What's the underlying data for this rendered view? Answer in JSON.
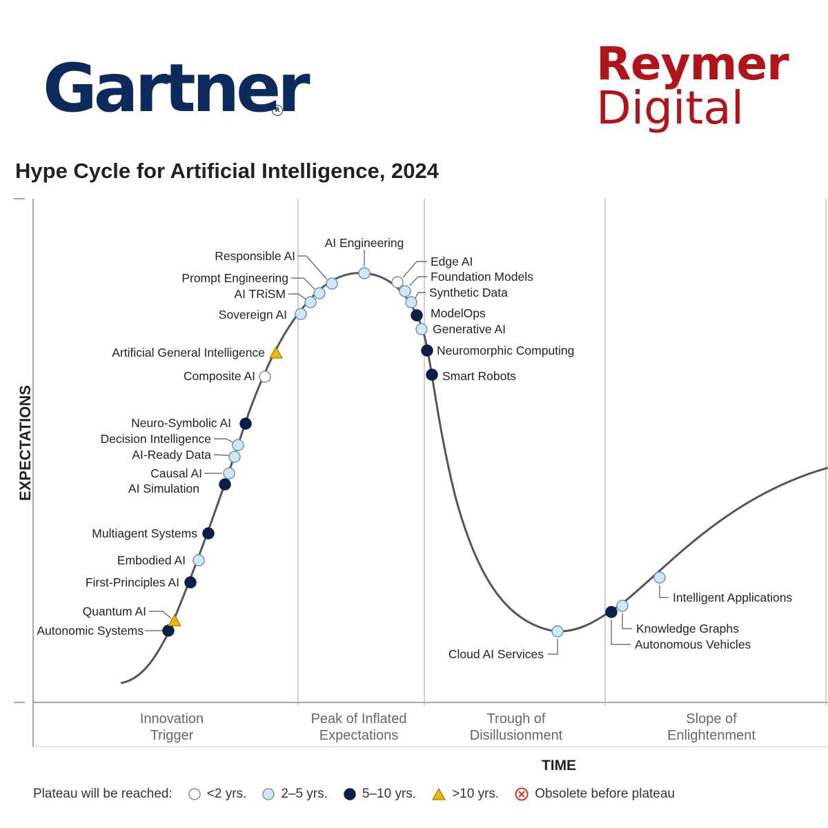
{
  "logos": {
    "gartner": "Gartner",
    "reymer_line1": "Reymer",
    "reymer_line2": "Digital",
    "colors": {
      "gartner": "#0c2a5b",
      "reymer": "#b2141a"
    }
  },
  "legend": {
    "prefix": "Plateau will be reached:",
    "items": [
      {
        "label": "<2 yrs.",
        "symbol": "white-circle"
      },
      {
        "label": "2–5 yrs.",
        "symbol": "light-blue-circle"
      },
      {
        "label": "5–10 yrs.",
        "symbol": "dark-blue-circle"
      },
      {
        "label": ">10 yrs.",
        "symbol": "yellow-triangle"
      },
      {
        "label": "Obsolete before plateau",
        "symbol": "red-x-circle"
      }
    ]
  },
  "chart_data": {
    "type": "scatter",
    "title": "Hype Cycle for Artificial Intelligence, 2024",
    "xlabel": "TIME",
    "ylabel": "EXPECTATIONS",
    "phases": [
      {
        "line1": "Innovation",
        "line2": "Trigger"
      },
      {
        "line1": "Peak of Inflated",
        "line2": "Expectations"
      },
      {
        "line1": "Trough of",
        "line2": "Disillusionment"
      },
      {
        "line1": "Slope of",
        "line2": "Enlightenment"
      }
    ],
    "colors": {
      "lt2": "#ffffff",
      "2to5": "#cfe8f6",
      "5to10": "#0b1f4b",
      "gt10": "#f2b705",
      "curve": "#555555",
      "grid": "#bdbdbd"
    },
    "technologies": [
      {
        "name": "Autonomic Systems",
        "plateau": "5to10"
      },
      {
        "name": "Quantum AI",
        "plateau": "gt10"
      },
      {
        "name": "First-Principles AI",
        "plateau": "5to10"
      },
      {
        "name": "Embodied AI",
        "plateau": "2to5"
      },
      {
        "name": "Multiagent Systems",
        "plateau": "5to10"
      },
      {
        "name": "AI Simulation",
        "plateau": "5to10"
      },
      {
        "name": "Causal AI",
        "plateau": "2to5"
      },
      {
        "name": "AI-Ready Data",
        "plateau": "2to5"
      },
      {
        "name": "Decision Intelligence",
        "plateau": "2to5"
      },
      {
        "name": "Neuro-Symbolic AI",
        "plateau": "5to10"
      },
      {
        "name": "Composite AI",
        "plateau": "lt2"
      },
      {
        "name": "Artificial General Intelligence",
        "plateau": "gt10"
      },
      {
        "name": "Sovereign AI",
        "plateau": "2to5"
      },
      {
        "name": "AI TRiSM",
        "plateau": "2to5"
      },
      {
        "name": "Prompt Engineering",
        "plateau": "2to5"
      },
      {
        "name": "Responsible AI",
        "plateau": "2to5"
      },
      {
        "name": "AI Engineering",
        "plateau": "2to5"
      },
      {
        "name": "Edge AI",
        "plateau": "lt2"
      },
      {
        "name": "Foundation Models",
        "plateau": "2to5"
      },
      {
        "name": "Synthetic Data",
        "plateau": "2to5"
      },
      {
        "name": "ModelOps",
        "plateau": "5to10"
      },
      {
        "name": "Generative AI",
        "plateau": "2to5"
      },
      {
        "name": "Neuromorphic Computing",
        "plateau": "5to10"
      },
      {
        "name": "Smart Robots",
        "plateau": "5to10"
      },
      {
        "name": "Cloud AI Services",
        "plateau": "2to5"
      },
      {
        "name": "Autonomous Vehicles",
        "plateau": "5to10"
      },
      {
        "name": "Knowledge Graphs",
        "plateau": "2to5"
      },
      {
        "name": "Intelligent Applications",
        "plateau": "2to5"
      }
    ]
  }
}
